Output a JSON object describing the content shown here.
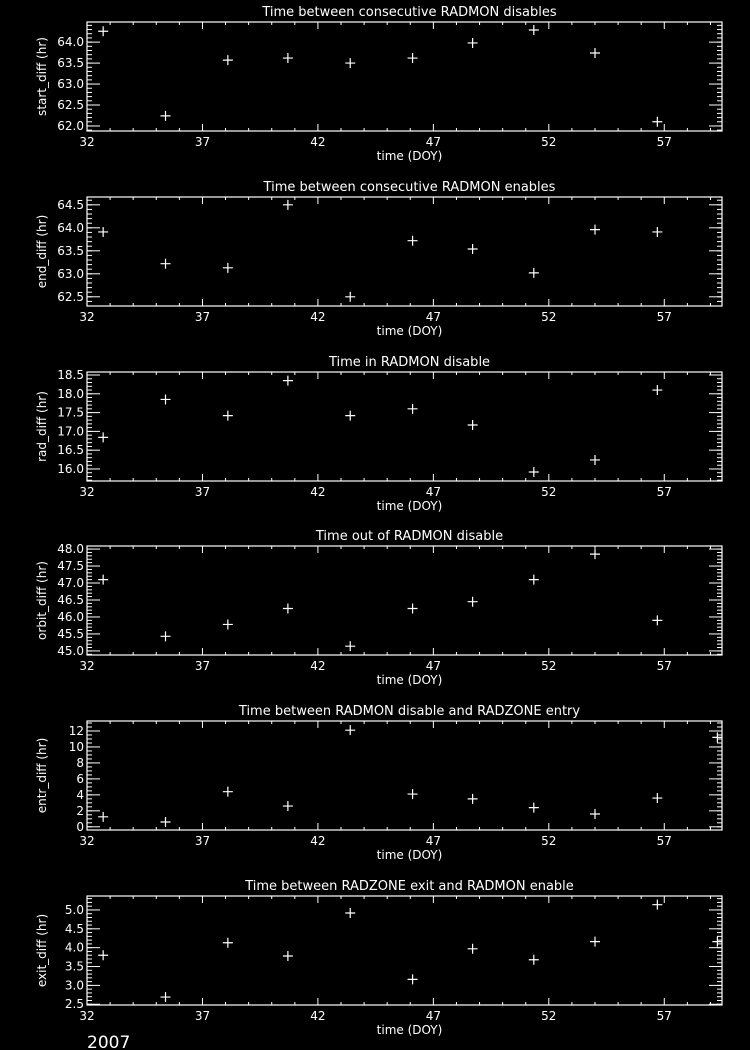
{
  "footer_label": "2007",
  "colors": {
    "background": "#000000",
    "foreground": "#ffffff"
  },
  "chart_data": [
    {
      "type": "scatter",
      "marker": "plus",
      "title": "Time between consecutive RADMON disables",
      "xlabel": "time (DOY)",
      "ylabel": "start_diff (hr)",
      "xlim": [
        32,
        59.5
      ],
      "ylim": [
        61.88,
        64.48
      ],
      "xticks": [
        32,
        37,
        42,
        47,
        52,
        57
      ],
      "yticks": [
        62.0,
        62.5,
        63.0,
        63.5,
        64.0
      ],
      "yminor": 0.1,
      "ydec": 1,
      "x": [
        32.7,
        35.4,
        38.1,
        40.7,
        43.4,
        46.1,
        48.7,
        51.35,
        54.0,
        56.7
      ],
      "y": [
        64.26,
        62.24,
        63.57,
        63.62,
        63.5,
        63.62,
        63.98,
        64.29,
        63.74,
        62.1
      ]
    },
    {
      "type": "scatter",
      "marker": "plus",
      "title": "Time between consecutive RADMON enables",
      "xlabel": "time (DOY)",
      "ylabel": "end_diff (hr)",
      "xlim": [
        32,
        59.5
      ],
      "ylim": [
        62.3,
        64.67
      ],
      "xticks": [
        32,
        37,
        42,
        47,
        52,
        57
      ],
      "yticks": [
        62.5,
        63.0,
        63.5,
        64.0,
        64.5
      ],
      "yminor": 0.1,
      "ydec": 1,
      "x": [
        32.7,
        35.4,
        38.1,
        40.7,
        43.4,
        46.1,
        48.7,
        51.35,
        54.0,
        56.7
      ],
      "y": [
        63.91,
        63.22,
        63.13,
        64.5,
        62.5,
        63.72,
        63.54,
        63.02,
        63.96,
        63.91
      ]
    },
    {
      "type": "scatter",
      "marker": "plus",
      "title": "Time in RADMON disable",
      "xlabel": "time (DOY)",
      "ylabel": "rad_diff (hr)",
      "xlim": [
        32,
        59.5
      ],
      "ylim": [
        15.68,
        18.58
      ],
      "xticks": [
        32,
        37,
        42,
        47,
        52,
        57
      ],
      "yticks": [
        16.0,
        16.5,
        17.0,
        17.5,
        18.0,
        18.5
      ],
      "yminor": 0.1,
      "ydec": 1,
      "x": [
        32.7,
        35.4,
        38.1,
        40.7,
        43.4,
        46.1,
        48.7,
        51.35,
        54.0,
        56.7
      ],
      "y": [
        16.84,
        17.85,
        17.42,
        18.35,
        17.42,
        17.6,
        17.17,
        15.92,
        16.24,
        18.1
      ]
    },
    {
      "type": "scatter",
      "marker": "plus",
      "title": "Time out of RADMON disable",
      "xlabel": "time (DOY)",
      "ylabel": "orbit_diff (hr)",
      "xlim": [
        32,
        59.5
      ],
      "ylim": [
        44.88,
        48.09
      ],
      "xticks": [
        32,
        37,
        42,
        47,
        52,
        57
      ],
      "yticks": [
        45.0,
        45.5,
        46.0,
        46.5,
        47.0,
        47.5,
        48.0
      ],
      "yminor": 0.1,
      "ydec": 1,
      "x": [
        32.7,
        35.4,
        38.1,
        40.7,
        43.4,
        46.1,
        48.7,
        51.35,
        54.0,
        56.7
      ],
      "y": [
        47.1,
        45.43,
        45.78,
        46.25,
        45.14,
        46.25,
        46.45,
        47.1,
        47.85,
        45.9
      ]
    },
    {
      "type": "scatter",
      "marker": "plus",
      "title": "Time between RADMON disable and RADZONE entry",
      "xlabel": "time (DOY)",
      "ylabel": "entr_diff (hr)",
      "xlim": [
        32,
        59.5
      ],
      "ylim": [
        -0.4,
        13.25
      ],
      "xticks": [
        32,
        37,
        42,
        47,
        52,
        57
      ],
      "yticks": [
        0,
        2,
        4,
        6,
        8,
        10,
        12
      ],
      "yminor": 0.5,
      "ydec": 0,
      "x": [
        32.7,
        35.4,
        38.1,
        40.7,
        43.4,
        46.1,
        48.7,
        51.35,
        54.0,
        56.7,
        59.3
      ],
      "y": [
        1.25,
        0.6,
        4.4,
        2.6,
        12.1,
        4.1,
        3.5,
        2.4,
        1.6,
        3.6,
        11.2
      ]
    },
    {
      "type": "scatter",
      "marker": "plus",
      "title": "Time between RADZONE exit and RADMON enable",
      "xlabel": "time (DOY)",
      "ylabel": "exit_diff (hr)",
      "xlim": [
        32,
        59.5
      ],
      "ylim": [
        2.48,
        5.37
      ],
      "xticks": [
        32,
        37,
        42,
        47,
        52,
        57
      ],
      "yticks": [
        2.5,
        3.0,
        3.5,
        4.0,
        4.5,
        5.0
      ],
      "yminor": 0.1,
      "ydec": 1,
      "x": [
        32.7,
        35.4,
        38.1,
        40.7,
        43.4,
        46.1,
        48.7,
        51.35,
        54.0,
        56.7,
        59.3
      ],
      "y": [
        3.8,
        2.69,
        4.13,
        3.78,
        4.92,
        3.16,
        3.97,
        3.68,
        4.16,
        5.14,
        4.16
      ]
    }
  ]
}
